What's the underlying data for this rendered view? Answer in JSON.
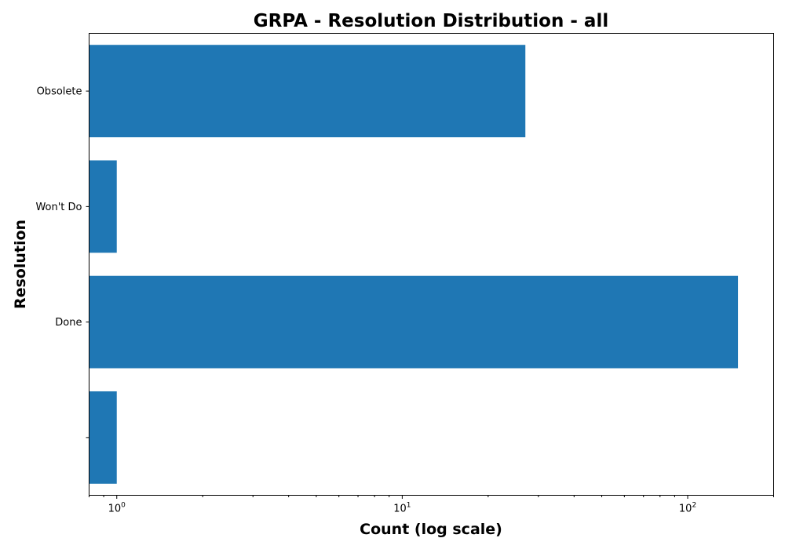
{
  "chart_data": {
    "type": "bar",
    "orientation": "horizontal",
    "title": "GRPA - Resolution Distribution - all",
    "xlabel": "Count (log scale)",
    "ylabel": "Resolution",
    "x_scale": "log",
    "xlim": [
      0.8,
      200
    ],
    "x_ticks": [
      {
        "value": 1,
        "base": "10",
        "exp": "0"
      },
      {
        "value": 10,
        "base": "10",
        "exp": "1"
      },
      {
        "value": 100,
        "base": "10",
        "exp": "2"
      }
    ],
    "categories": [
      "",
      "Done",
      "Won't Do",
      "Obsolete"
    ],
    "values": [
      1,
      150,
      1,
      27
    ],
    "bar_color": "#1f77b4",
    "grid": false,
    "legend": "none"
  }
}
